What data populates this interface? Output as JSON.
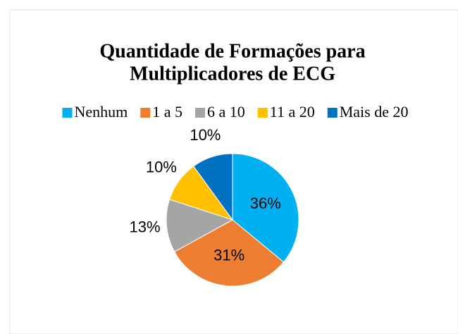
{
  "chart_data": {
    "type": "pie",
    "title": [
      "Quantidade de Formações para",
      "Multiplicadores de ECG"
    ],
    "categories": [
      "Nenhum",
      "1 a 5",
      "6 a 10",
      "11 a 20",
      "Mais de 20"
    ],
    "values": [
      36,
      31,
      13,
      10,
      10
    ],
    "value_labels": [
      "36%",
      "31%",
      "13%",
      "10%",
      "10%"
    ],
    "colors": [
      "#00b0f0",
      "#ed7d31",
      "#a5a5a5",
      "#ffc000",
      "#0070c0"
    ],
    "legend": "top"
  }
}
